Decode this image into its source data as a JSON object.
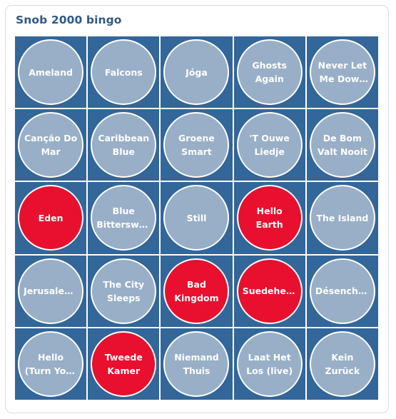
{
  "card": {
    "title": "Snob 2000 bingo"
  },
  "colors": {
    "title": "#2e5a87",
    "cell_bg": "#336699",
    "circle_default": "#98afc7",
    "circle_marked": "#e8102e",
    "text": "#ffffff"
  },
  "bingo": {
    "cells": [
      {
        "label": "Ameland",
        "marked": false
      },
      {
        "label": "Falcons",
        "marked": false
      },
      {
        "label": "Jóga",
        "marked": false
      },
      {
        "label": "Ghosts Again",
        "marked": false
      },
      {
        "label": "Never Let Me Down Again",
        "marked": false
      },
      {
        "label": "Canção Do Mar",
        "marked": false
      },
      {
        "label": "Caribbean Blue",
        "marked": false
      },
      {
        "label": "Groene Smart",
        "marked": false
      },
      {
        "label": "'T Ouwe Liedje",
        "marked": false
      },
      {
        "label": "De Bom Valt Nooit",
        "marked": false
      },
      {
        "label": "Eden",
        "marked": true
      },
      {
        "label": "Blue Bittersweet",
        "marked": false
      },
      {
        "label": "Still",
        "marked": false
      },
      {
        "label": "Hello Earth",
        "marked": true
      },
      {
        "label": "The Island",
        "marked": false
      },
      {
        "label": "Jerusalema",
        "marked": false
      },
      {
        "label": "The City Sleeps",
        "marked": false
      },
      {
        "label": "Bad Kingdom",
        "marked": true
      },
      {
        "label": "Suedehead",
        "marked": true
      },
      {
        "label": "Désenchant",
        "marked": false
      },
      {
        "label": "Hello (Turn Your Radio On)",
        "marked": false
      },
      {
        "label": "Tweede Kamer",
        "marked": true
      },
      {
        "label": "Niemand Thuis",
        "marked": false
      },
      {
        "label": "Laat Het Los (live)",
        "marked": false
      },
      {
        "label": "Kein Zurück",
        "marked": false
      }
    ]
  }
}
